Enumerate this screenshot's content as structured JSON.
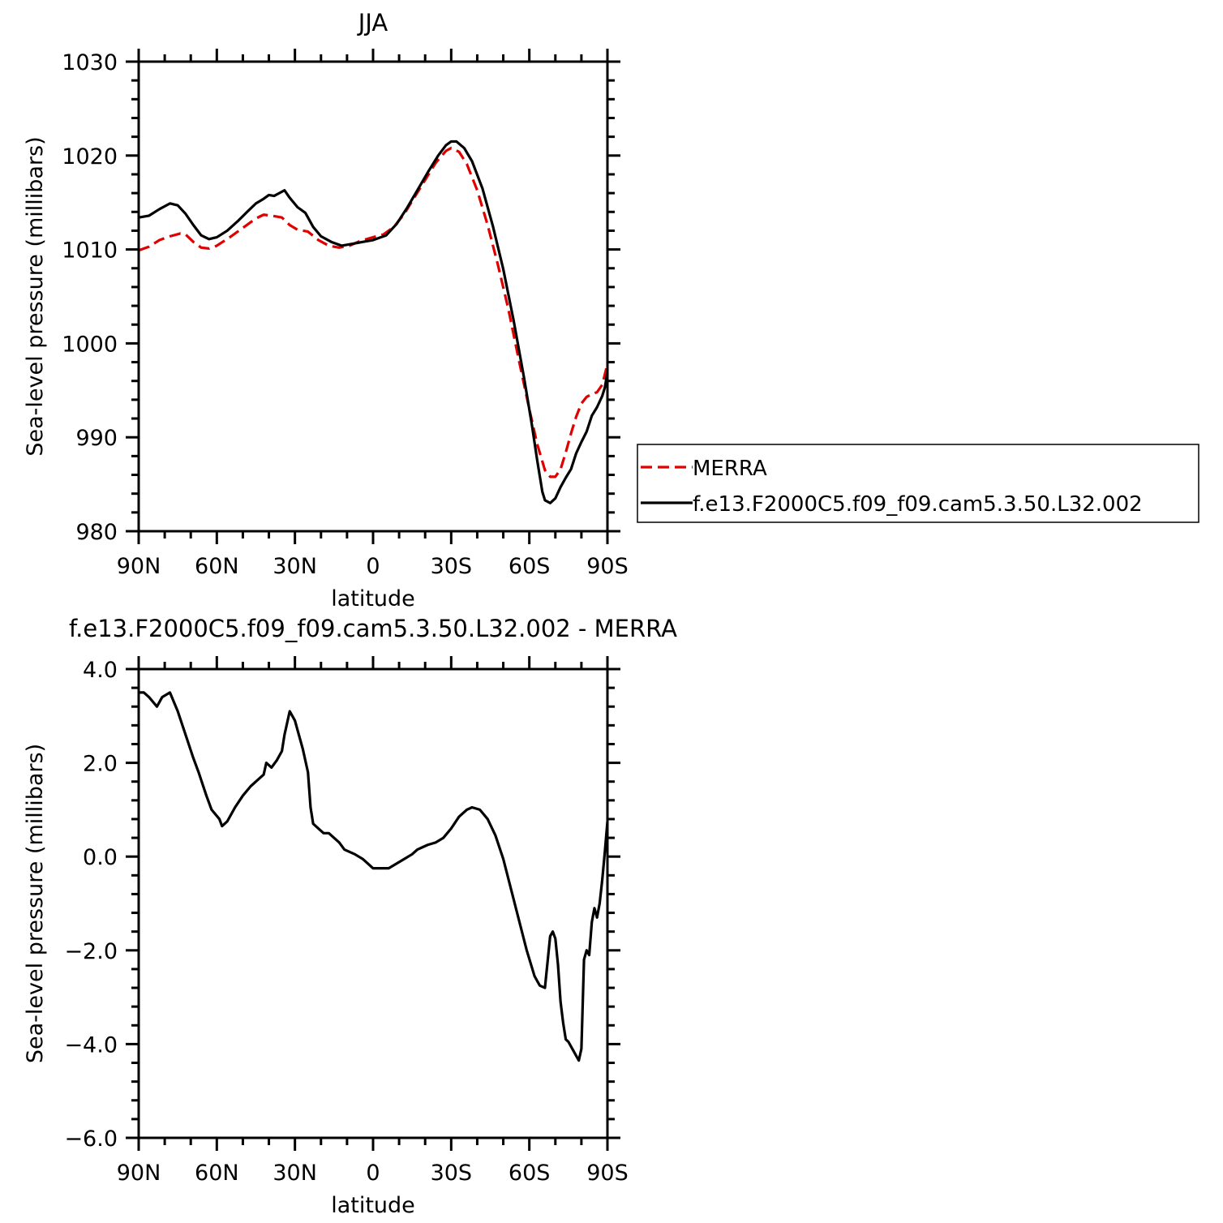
{
  "chart_data": [
    {
      "type": "line",
      "title": "JJA",
      "xlabel": "latitude",
      "ylabel": "Sea-level pressure (millibars)",
      "x_domain": [
        90,
        -90
      ],
      "x_ticks": [
        90,
        60,
        30,
        0,
        -30,
        -60,
        -90
      ],
      "x_tick_labels": [
        "90N",
        "60N",
        "30N",
        "0",
        "30S",
        "60S",
        "90S"
      ],
      "ylim": [
        980,
        1030
      ],
      "y_ticks": [
        980,
        990,
        1000,
        1010,
        1020,
        1030
      ],
      "y_tick_labels": [
        "980",
        "990",
        "1000",
        "1010",
        "1020",
        "1030"
      ],
      "legend": {
        "position": "right",
        "entries": [
          "MERRA",
          "f.e13.F2000C5.f09_f09.cam5.3.50.L32.002"
        ]
      },
      "series": [
        {
          "name": "MERRA",
          "color": "#e00000",
          "dash": "dashed",
          "points": [
            [
              90,
              1009.9
            ],
            [
              86,
              1010.3
            ],
            [
              82,
              1011.0
            ],
            [
              78,
              1011.4
            ],
            [
              74,
              1011.7
            ],
            [
              72,
              1011.6
            ],
            [
              69,
              1010.8
            ],
            [
              66,
              1010.2
            ],
            [
              63,
              1010.1
            ],
            [
              60,
              1010.4
            ],
            [
              55,
              1011.3
            ],
            [
              50,
              1012.3
            ],
            [
              45,
              1013.3
            ],
            [
              42,
              1013.7
            ],
            [
              39,
              1013.6
            ],
            [
              35,
              1013.4
            ],
            [
              32,
              1012.6
            ],
            [
              29,
              1012.1
            ],
            [
              25,
              1011.9
            ],
            [
              21,
              1011.0
            ],
            [
              17,
              1010.4
            ],
            [
              13,
              1010.2
            ],
            [
              9,
              1010.4
            ],
            [
              5,
              1010.9
            ],
            [
              0,
              1011.3
            ],
            [
              -4,
              1011.6
            ],
            [
              -8,
              1012.4
            ],
            [
              -12,
              1013.8
            ],
            [
              -16,
              1015.6
            ],
            [
              -20,
              1017.4
            ],
            [
              -24,
              1019.2
            ],
            [
              -28,
              1020.5
            ],
            [
              -30,
              1020.8
            ],
            [
              -33,
              1020.4
            ],
            [
              -36,
              1019.1
            ],
            [
              -40,
              1016.3
            ],
            [
              -44,
              1012.6
            ],
            [
              -48,
              1008.3
            ],
            [
              -52,
              1003.6
            ],
            [
              -56,
              998.2
            ],
            [
              -60,
              993.0
            ],
            [
              -63,
              989.3
            ],
            [
              -66,
              986.5
            ],
            [
              -68,
              985.8
            ],
            [
              -70,
              985.8
            ],
            [
              -72,
              986.6
            ],
            [
              -74,
              988.4
            ],
            [
              -76,
              990.4
            ],
            [
              -78,
              992.2
            ],
            [
              -80,
              993.6
            ],
            [
              -82,
              994.3
            ],
            [
              -84,
              994.6
            ],
            [
              -86,
              994.8
            ],
            [
              -88,
              995.6
            ],
            [
              -90,
              997.8
            ]
          ]
        },
        {
          "name": "f.e13.F2000C5.f09_f09.cam5.3.50.L32.002",
          "color": "#000000",
          "dash": "solid",
          "points": [
            [
              90,
              1013.4
            ],
            [
              86,
              1013.6
            ],
            [
              82,
              1014.3
            ],
            [
              78,
              1014.9
            ],
            [
              75,
              1014.7
            ],
            [
              72,
              1013.8
            ],
            [
              69,
              1012.6
            ],
            [
              66,
              1011.5
            ],
            [
              63,
              1011.1
            ],
            [
              60,
              1011.3
            ],
            [
              56,
              1012.0
            ],
            [
              52,
              1013.0
            ],
            [
              48,
              1014.1
            ],
            [
              45,
              1014.9
            ],
            [
              42,
              1015.4
            ],
            [
              40,
              1015.8
            ],
            [
              38,
              1015.7
            ],
            [
              36,
              1016.0
            ],
            [
              34,
              1016.3
            ],
            [
              32,
              1015.5
            ],
            [
              29,
              1014.5
            ],
            [
              26,
              1013.9
            ],
            [
              23,
              1012.4
            ],
            [
              20,
              1011.4
            ],
            [
              16,
              1010.8
            ],
            [
              12,
              1010.4
            ],
            [
              8,
              1010.6
            ],
            [
              4,
              1010.8
            ],
            [
              0,
              1011.0
            ],
            [
              -5,
              1011.5
            ],
            [
              -9,
              1012.7
            ],
            [
              -13,
              1014.4
            ],
            [
              -17,
              1016.3
            ],
            [
              -21,
              1018.2
            ],
            [
              -25,
              1020.0
            ],
            [
              -28,
              1021.1
            ],
            [
              -30,
              1021.5
            ],
            [
              -32,
              1021.5
            ],
            [
              -35,
              1020.8
            ],
            [
              -38,
              1019.4
            ],
            [
              -42,
              1016.5
            ],
            [
              -46,
              1012.5
            ],
            [
              -50,
              1007.9
            ],
            [
              -54,
              1002.4
            ],
            [
              -58,
              996.3
            ],
            [
              -61,
              991.3
            ],
            [
              -63,
              987.6
            ],
            [
              -65,
              984.2
            ],
            [
              -66,
              983.3
            ],
            [
              -68,
              983.0
            ],
            [
              -70,
              983.5
            ],
            [
              -72,
              984.7
            ],
            [
              -74,
              985.7
            ],
            [
              -76,
              986.6
            ],
            [
              -78,
              988.3
            ],
            [
              -80,
              989.5
            ],
            [
              -82,
              990.6
            ],
            [
              -84,
              992.3
            ],
            [
              -86,
              993.2
            ],
            [
              -88,
              994.4
            ],
            [
              -89,
              995.3
            ],
            [
              -90,
              996.9
            ]
          ]
        }
      ]
    },
    {
      "type": "line",
      "title": "f.e13.F2000C5.f09_f09.cam5.3.50.L32.002 - MERRA",
      "xlabel": "latitude",
      "ylabel": "Sea-level pressure (millibars)",
      "x_domain": [
        90,
        -90
      ],
      "x_ticks": [
        90,
        60,
        30,
        0,
        -30,
        -60,
        -90
      ],
      "x_tick_labels": [
        "90N",
        "60N",
        "30N",
        "0",
        "30S",
        "60S",
        "90S"
      ],
      "ylim": [
        -6,
        4
      ],
      "y_ticks": [
        -6,
        -4,
        -2,
        0,
        2,
        4
      ],
      "y_tick_labels": [
        "−6.0",
        "−4.0",
        "−2.0",
        "0.0",
        "2.0",
        "4.0"
      ],
      "series": [
        {
          "color": "#000000",
          "dash": "solid",
          "points": [
            [
              90,
              3.5
            ],
            [
              88,
              3.5
            ],
            [
              86,
              3.4
            ],
            [
              83,
              3.2
            ],
            [
              81,
              3.4
            ],
            [
              78,
              3.5
            ],
            [
              75,
              3.1
            ],
            [
              72,
              2.6
            ],
            [
              69,
              2.1
            ],
            [
              67,
              1.8
            ],
            [
              64,
              1.3
            ],
            [
              62,
              1.0
            ],
            [
              59,
              0.8
            ],
            [
              58,
              0.65
            ],
            [
              56,
              0.75
            ],
            [
              53,
              1.05
            ],
            [
              50,
              1.3
            ],
            [
              47,
              1.5
            ],
            [
              44,
              1.65
            ],
            [
              42,
              1.75
            ],
            [
              41,
              2.0
            ],
            [
              39,
              1.9
            ],
            [
              37,
              2.05
            ],
            [
              35,
              2.25
            ],
            [
              34,
              2.6
            ],
            [
              32,
              3.1
            ],
            [
              30,
              2.9
            ],
            [
              29,
              2.7
            ],
            [
              27,
              2.3
            ],
            [
              25,
              1.8
            ],
            [
              24,
              1.05
            ],
            [
              23,
              0.7
            ],
            [
              21,
              0.6
            ],
            [
              19,
              0.5
            ],
            [
              17,
              0.5
            ],
            [
              15,
              0.4
            ],
            [
              13,
              0.3
            ],
            [
              11,
              0.15
            ],
            [
              9,
              0.1
            ],
            [
              7,
              0.05
            ],
            [
              4,
              -0.05
            ],
            [
              2,
              -0.15
            ],
            [
              0,
              -0.25
            ],
            [
              -3,
              -0.25
            ],
            [
              -6,
              -0.25
            ],
            [
              -9,
              -0.15
            ],
            [
              -12,
              -0.05
            ],
            [
              -15,
              0.05
            ],
            [
              -17,
              0.15
            ],
            [
              -19,
              0.2
            ],
            [
              -21,
              0.25
            ],
            [
              -24,
              0.3
            ],
            [
              -27,
              0.4
            ],
            [
              -30,
              0.6
            ],
            [
              -33,
              0.85
            ],
            [
              -36,
              1.0
            ],
            [
              -38,
              1.05
            ],
            [
              -41,
              1.0
            ],
            [
              -44,
              0.8
            ],
            [
              -47,
              0.45
            ],
            [
              -50,
              -0.05
            ],
            [
              -53,
              -0.7
            ],
            [
              -56,
              -1.35
            ],
            [
              -59,
              -2.0
            ],
            [
              -62,
              -2.55
            ],
            [
              -64,
              -2.75
            ],
            [
              -66,
              -2.8
            ],
            [
              -68,
              -1.7
            ],
            [
              -69,
              -1.6
            ],
            [
              -70,
              -1.75
            ],
            [
              -71,
              -2.3
            ],
            [
              -72,
              -3.1
            ],
            [
              -73,
              -3.55
            ],
            [
              -74,
              -3.9
            ],
            [
              -75,
              -3.95
            ],
            [
              -77,
              -4.15
            ],
            [
              -79,
              -4.35
            ],
            [
              -80,
              -4.1
            ],
            [
              -81,
              -2.2
            ],
            [
              -82,
              -2.0
            ],
            [
              -83,
              -2.1
            ],
            [
              -84,
              -1.4
            ],
            [
              -85,
              -1.1
            ],
            [
              -86,
              -1.3
            ],
            [
              -87,
              -1.0
            ],
            [
              -88,
              -0.5
            ],
            [
              -89,
              0.1
            ],
            [
              -90,
              0.75
            ]
          ]
        }
      ]
    }
  ]
}
